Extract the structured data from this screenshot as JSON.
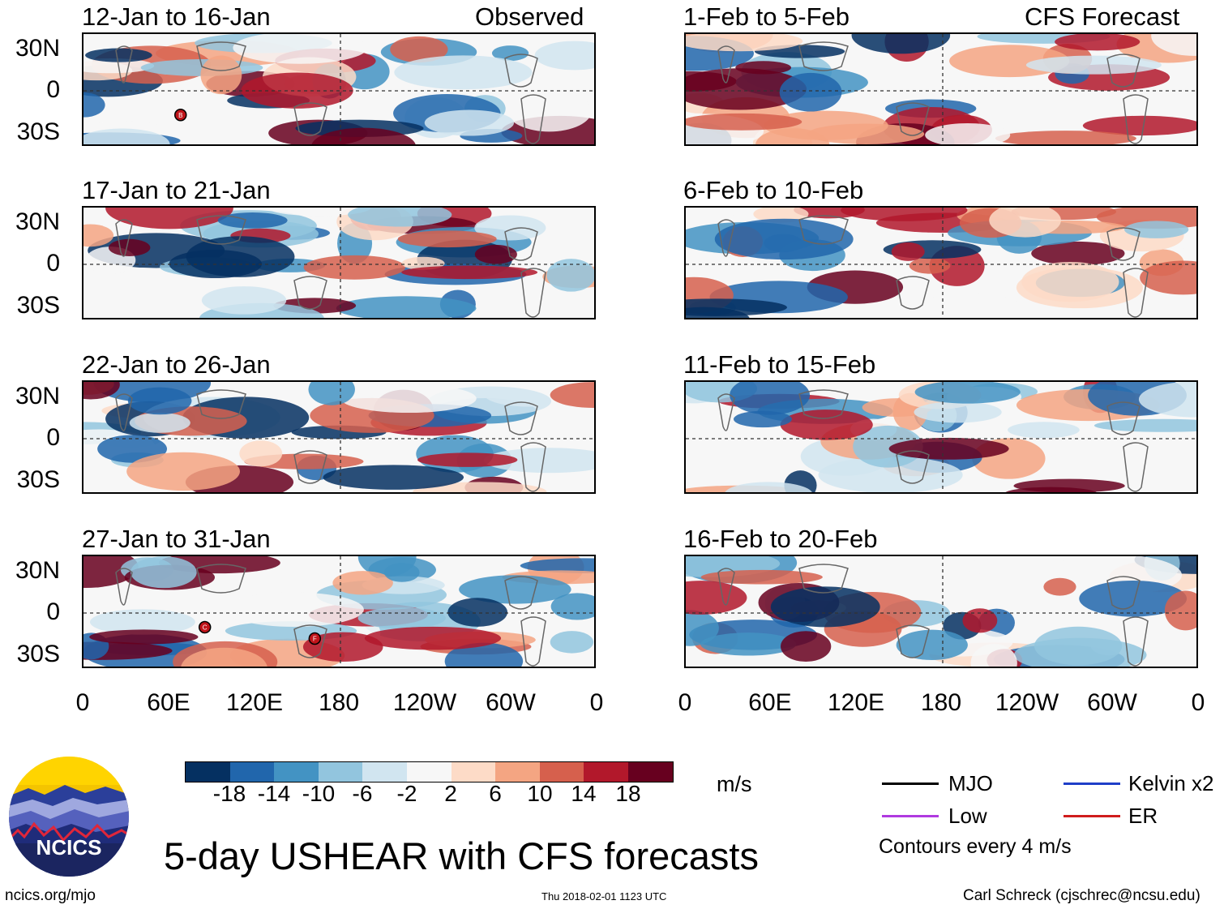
{
  "left_column": {
    "header": "Observed",
    "panels": [
      {
        "title": "12-Jan to 16-Jan",
        "storms": [
          {
            "label": "B",
            "lon": 68,
            "lat": -17
          }
        ]
      },
      {
        "title": "17-Jan to 21-Jan",
        "storms": []
      },
      {
        "title": "22-Jan to 26-Jan",
        "storms": []
      },
      {
        "title": "27-Jan to 31-Jan",
        "storms": [
          {
            "label": "C",
            "lon": 85,
            "lat": -10
          },
          {
            "label": "F",
            "lon": 162,
            "lat": -18
          }
        ]
      }
    ]
  },
  "right_column": {
    "header": "CFS Forecast",
    "panels": [
      {
        "title": "1-Feb to 5-Feb"
      },
      {
        "title": "6-Feb to 10-Feb"
      },
      {
        "title": "11-Feb to 15-Feb"
      },
      {
        "title": "16-Feb to 20-Feb"
      }
    ]
  },
  "lat_labels": [
    "30N",
    "0",
    "30S"
  ],
  "lon_labels": [
    "0",
    "60E",
    "120E",
    "180",
    "120W",
    "60W",
    "0"
  ],
  "colorbar": {
    "colors": [
      "#053061",
      "#2166ac",
      "#4393c3",
      "#92c5de",
      "#d1e5f0",
      "#f7f7f7",
      "#fddbc7",
      "#f4a582",
      "#d6604d",
      "#b2182b",
      "#67001f"
    ],
    "tick_labels": [
      "-18",
      "-14",
      "-10",
      "-6",
      "-2",
      "2",
      "6",
      "10",
      "14",
      "18"
    ],
    "units": "m/s"
  },
  "legend": {
    "items": [
      {
        "label": "MJO",
        "color": "#000000"
      },
      {
        "label": "Kelvin x2",
        "color": "#1f3fc8"
      },
      {
        "label": "Low",
        "color": "#b03ae0"
      },
      {
        "label": "ER",
        "color": "#d01c1c"
      }
    ],
    "contour_note": "Contours every 4 m/s"
  },
  "logo": {
    "text": "NCICS"
  },
  "main_title": "5-day USHEAR with CFS forecasts",
  "footer": {
    "left": "ncics.org/mjo",
    "center": "Thu 2018-02-01 1123 UTC",
    "right": "Carl Schreck (cjschrec@ncsu.edu)"
  }
}
